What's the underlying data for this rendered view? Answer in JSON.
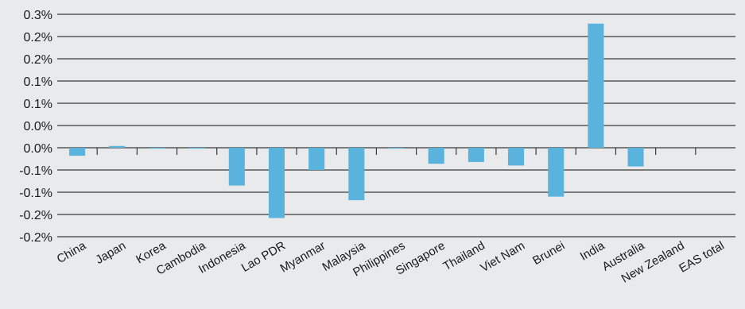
{
  "chart_data": {
    "type": "bar",
    "title": "",
    "xlabel": "",
    "ylabel": "",
    "categories": [
      "China",
      "Japan",
      "Korea",
      "Cambodia",
      "Indonesia",
      "Lao PDR",
      "Myanmar",
      "Malaysia",
      "Philippines",
      "Singapore",
      "Thailand",
      "Viet Nam",
      "Brunei",
      "India",
      "Australia",
      "New Zealand",
      "EAS total"
    ],
    "values": [
      -0.018,
      0.004,
      -0.002,
      -0.002,
      -0.085,
      -0.158,
      -0.05,
      -0.118,
      -0.002,
      -0.036,
      -0.032,
      -0.04,
      -0.11,
      0.279,
      -0.042,
      0.0,
      0.0
    ],
    "ylim": [
      -0.2,
      0.3
    ],
    "yticks": [
      0.3,
      0.25,
      0.2,
      0.15,
      0.1,
      0.05,
      0.0,
      -0.05,
      -0.1,
      -0.15,
      -0.2
    ],
    "ytick_labels": [
      "0.3%",
      "0.2%",
      "0.2%",
      "0.1%",
      "0.1%",
      "0.0%",
      "0.0%",
      "-0.1%",
      "-0.1%",
      "-0.2%",
      "-0.2%"
    ],
    "grid": true,
    "legend": "none",
    "colors": {
      "bar": "#5ab3dc",
      "grid": "#3a3a3a",
      "background": "#e9eaeb"
    }
  }
}
